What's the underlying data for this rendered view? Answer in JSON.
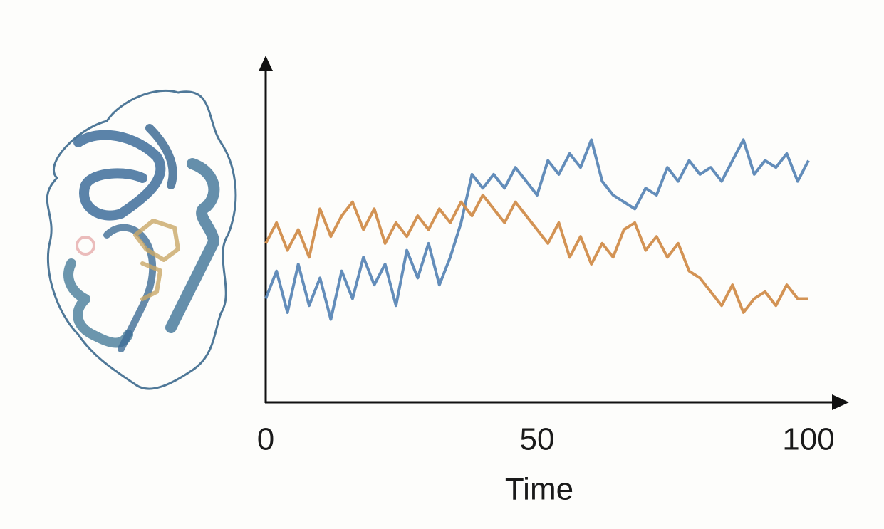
{
  "chart_data": {
    "type": "line",
    "x": [
      0,
      2,
      4,
      6,
      8,
      10,
      12,
      14,
      16,
      18,
      20,
      22,
      24,
      26,
      28,
      30,
      32,
      34,
      36,
      38,
      40,
      42,
      44,
      46,
      48,
      50,
      52,
      54,
      56,
      58,
      60,
      62,
      64,
      66,
      68,
      70,
      72,
      74,
      76,
      78,
      80,
      82,
      84,
      86,
      88,
      90,
      92,
      94,
      96,
      98,
      100
    ],
    "series": [
      {
        "color": "#5b87b6",
        "values": [
          30,
          38,
          26,
          40,
          28,
          36,
          24,
          38,
          30,
          42,
          34,
          40,
          28,
          44,
          36,
          46,
          34,
          42,
          52,
          66,
          62,
          66,
          62,
          68,
          64,
          60,
          70,
          66,
          72,
          68,
          76,
          64,
          60,
          58,
          56,
          62,
          60,
          68,
          64,
          70,
          66,
          68,
          64,
          70,
          76,
          66,
          70,
          68,
          72,
          64,
          70
        ]
      },
      {
        "color": "#d18d4b",
        "values": [
          46,
          52,
          44,
          50,
          42,
          56,
          48,
          54,
          58,
          50,
          56,
          46,
          52,
          48,
          54,
          50,
          56,
          52,
          58,
          54,
          60,
          56,
          52,
          58,
          54,
          50,
          46,
          52,
          42,
          48,
          40,
          46,
          42,
          50,
          52,
          44,
          48,
          42,
          46,
          38,
          36,
          32,
          28,
          34,
          26,
          30,
          32,
          28,
          34,
          30,
          30
        ]
      }
    ],
    "xlabel": "Time",
    "xlim": [
      0,
      100
    ],
    "xticks": [
      0,
      50,
      100
    ],
    "ylim": [
      0,
      100
    ],
    "grid": false
  }
}
